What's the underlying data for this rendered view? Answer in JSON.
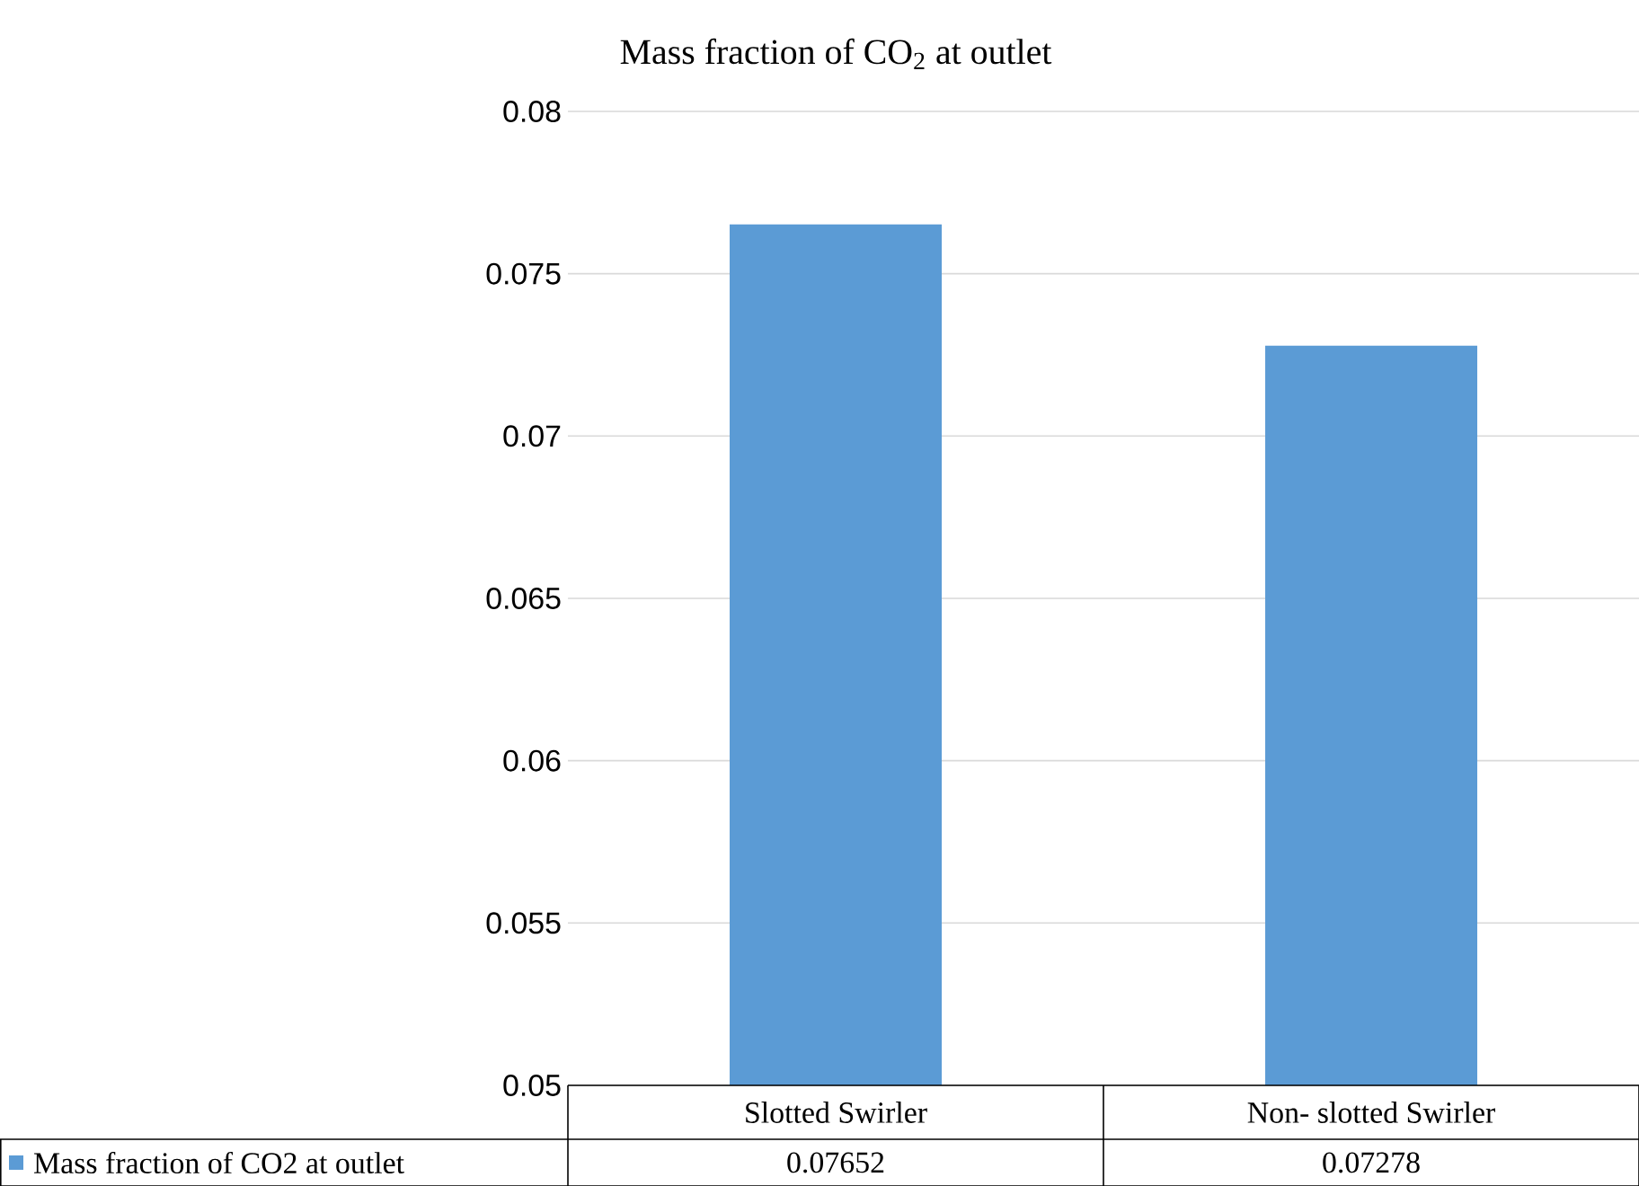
{
  "chart_data": {
    "type": "bar",
    "title": "Mass fraction of CO$_{2}$ at outlet",
    "categories": [
      "Slotted Swirler",
      "Non- slotted Swirler"
    ],
    "series": [
      {
        "name": "Mass fraction of CO2 at outlet",
        "color": "#5b9bd5",
        "values": [
          0.07652,
          0.07278
        ]
      }
    ],
    "ylim": [
      0.05,
      0.08
    ],
    "yticks": [
      0.05,
      0.055,
      0.06,
      0.065,
      0.07,
      0.075,
      0.08
    ],
    "grid": "y",
    "legend": "bottom left",
    "data_labels": true
  }
}
